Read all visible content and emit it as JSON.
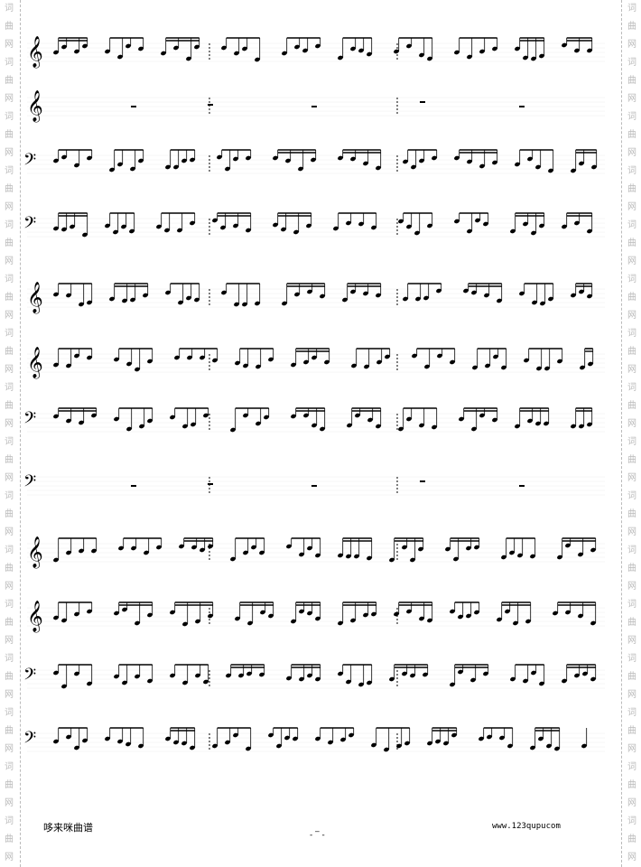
{
  "watermark": {
    "chars": [
      "词",
      "曲",
      "网"
    ]
  },
  "score": {
    "staves": [
      {
        "clef": "treble"
      },
      {
        "clef": "treble"
      },
      {
        "clef": "bass"
      },
      {
        "clef": "bass"
      },
      {
        "clef": "treble"
      },
      {
        "clef": "treble"
      },
      {
        "clef": "bass"
      },
      {
        "clef": "bass"
      },
      {
        "clef": "treble"
      },
      {
        "clef": "treble"
      },
      {
        "clef": "bass"
      },
      {
        "clef": "bass"
      }
    ]
  },
  "footer": {
    "left_text": "哆来咪曲谱",
    "right_text": "www.123qupucom",
    "page_number": "- ‾ -"
  }
}
